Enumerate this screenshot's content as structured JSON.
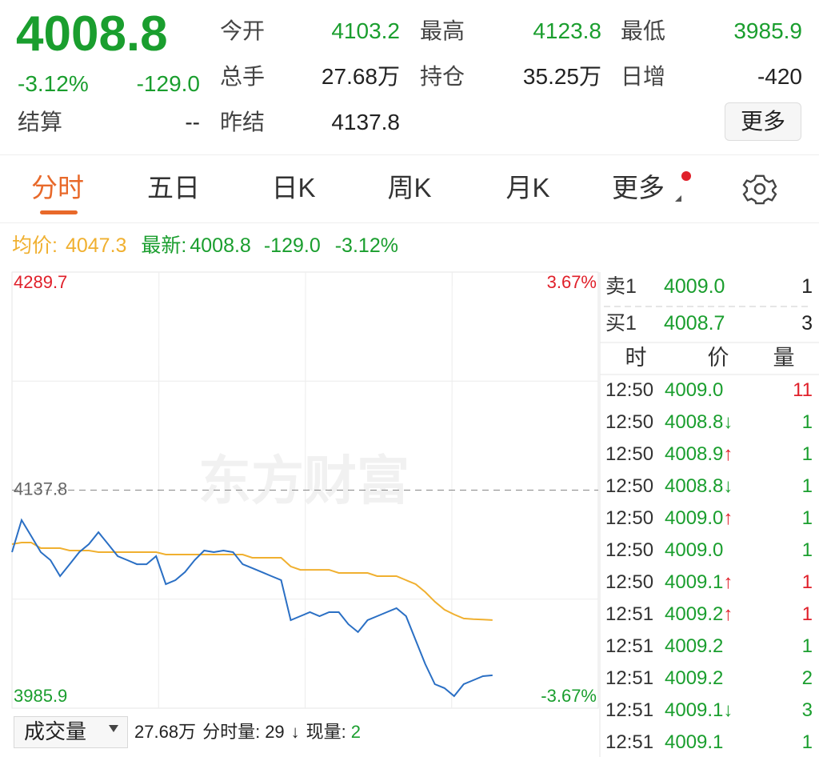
{
  "quote": {
    "price": "4008.8",
    "change_pct": "-3.12%",
    "change": "-129.0",
    "fields": [
      {
        "label": "今开",
        "value": "4103.2",
        "color": "#1a9e2e"
      },
      {
        "label": "最高",
        "value": "4123.8",
        "color": "#1a9e2e"
      },
      {
        "label": "最低",
        "value": "3985.9",
        "color": "#1a9e2e"
      },
      {
        "label": "总手",
        "value": "27.68万",
        "color": "#222222"
      },
      {
        "label": "持仓",
        "value": "35.25万",
        "color": "#222222"
      },
      {
        "label": "日增",
        "value": "-420",
        "color": "#222222"
      },
      {
        "label": "结算",
        "value": "--",
        "color": "#222222"
      },
      {
        "label": "昨结",
        "value": "4137.8",
        "color": "#222222"
      }
    ],
    "more_button": "更多"
  },
  "tabs": [
    "分时",
    "五日",
    "日K",
    "周K",
    "月K",
    "更多"
  ],
  "legend": {
    "avg_label": "均价:",
    "avg_value": "4047.3",
    "latest_label": "最新:",
    "latest_value": "4008.8",
    "latest_change": "-129.0",
    "latest_pct": "-3.12%"
  },
  "chart_data": {
    "type": "line",
    "watermark": "东方财富",
    "ylim": [
      3985.9,
      4289.7
    ],
    "yticks": [
      4289.7,
      4137.8,
      3985.9
    ],
    "y2lim": [
      -3.67,
      3.67
    ],
    "y2ticks": [
      {
        "value": 3.67,
        "label": "3.67%"
      },
      {
        "value": -3.67,
        "label": "-3.67%"
      }
    ],
    "series": [
      {
        "name": "最新",
        "color": "#2a6fc4",
        "values": [
          4094.6,
          4116.9,
          4105.8,
          4094.6,
          4089.0,
          4077.9,
          4086.2,
          4094.6,
          4100.2,
          4108.5,
          4100.2,
          4091.8,
          4089.0,
          4086.2,
          4086.2,
          4091.8,
          4072.3,
          4075.1,
          4080.7,
          4089.0,
          4095.7,
          4094.6,
          4095.7,
          4094.6,
          4086.2,
          4083.5,
          4080.7,
          4077.9,
          4075.1,
          4047.2,
          4050.0,
          4052.8,
          4050.0,
          4052.8,
          4052.8,
          4044.4,
          4038.9,
          4047.2,
          4050.0,
          4052.8,
          4055.6,
          4050.0,
          4033.3,
          4016.6,
          4002.6,
          3999.9,
          3994.3,
          4002.6,
          4005.4,
          4008.2,
          4008.8
        ]
      },
      {
        "name": "均价",
        "color": "#f0b030",
        "values": [
          4100.2,
          4101.3,
          4101.3,
          4097.4,
          4097.4,
          4097.4,
          4095.7,
          4095.7,
          4095.7,
          4094.6,
          4094.6,
          4094.6,
          4094.6,
          4094.6,
          4094.6,
          4094.6,
          4092.9,
          4092.9,
          4092.9,
          4092.9,
          4092.9,
          4092.9,
          4092.9,
          4092.9,
          4092.9,
          4090.7,
          4090.7,
          4090.7,
          4090.7,
          4084.6,
          4082.3,
          4082.3,
          4082.3,
          4082.3,
          4080.1,
          4080.1,
          4080.1,
          4080.1,
          4077.9,
          4077.9,
          4077.9,
          4075.1,
          4072.3,
          4066.8,
          4060.1,
          4054.5,
          4051.2,
          4048.4,
          4047.9,
          4047.6,
          4047.3
        ]
      }
    ]
  },
  "order_book": {
    "rows": [
      {
        "side": "卖1",
        "price": "4009.0",
        "volume": "1"
      },
      {
        "side": "买1",
        "price": "4008.7",
        "volume": "3"
      }
    ]
  },
  "trades": {
    "columns": [
      "时",
      "价",
      "量"
    ],
    "rows": [
      {
        "time": "12:50",
        "price": "4009.0",
        "arrow": "",
        "volume": "11",
        "color": "#e0202a"
      },
      {
        "time": "12:50",
        "price": "4008.8",
        "arrow": "↓",
        "volume": "1",
        "color": "#1a9e2e"
      },
      {
        "time": "12:50",
        "price": "4008.9",
        "arrow": "↑",
        "volume": "1",
        "color": "#1a9e2e"
      },
      {
        "time": "12:50",
        "price": "4008.8",
        "arrow": "↓",
        "volume": "1",
        "color": "#1a9e2e"
      },
      {
        "time": "12:50",
        "price": "4009.0",
        "arrow": "↑",
        "volume": "1",
        "color": "#1a9e2e"
      },
      {
        "time": "12:50",
        "price": "4009.0",
        "arrow": "",
        "volume": "1",
        "color": "#1a9e2e"
      },
      {
        "time": "12:50",
        "price": "4009.1",
        "arrow": "↑",
        "volume": "1",
        "color": "#e0202a"
      },
      {
        "time": "12:51",
        "price": "4009.2",
        "arrow": "↑",
        "volume": "1",
        "color": "#e0202a"
      },
      {
        "time": "12:51",
        "price": "4009.2",
        "arrow": "",
        "volume": "1",
        "color": "#1a9e2e"
      },
      {
        "time": "12:51",
        "price": "4009.2",
        "arrow": "",
        "volume": "2",
        "color": "#1a9e2e"
      },
      {
        "time": "12:51",
        "price": "4009.1",
        "arrow": "↓",
        "volume": "3",
        "color": "#1a9e2e"
      },
      {
        "time": "12:51",
        "price": "4009.1",
        "arrow": "",
        "volume": "1",
        "color": "#1a9e2e"
      }
    ]
  },
  "volume_bar": {
    "selector": "成交量",
    "total": "27.68万",
    "interval_label": "分时量:",
    "interval_value": "29",
    "arrow": "↓",
    "current_label": "现量:",
    "current_value": "2"
  }
}
